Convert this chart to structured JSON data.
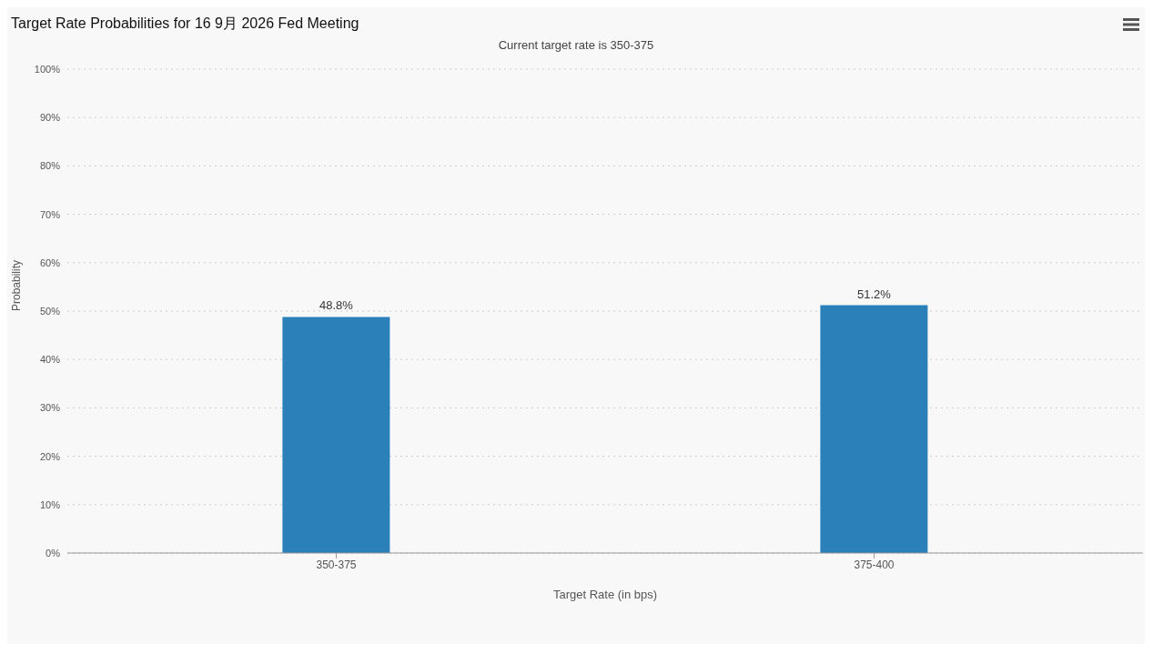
{
  "chart_data": {
    "type": "bar",
    "title": "Target Rate Probabilities for 16 9月 2026 Fed Meeting",
    "subtitle": "Current target rate is 350-375",
    "xlabel": "Target Rate (in bps)",
    "ylabel": "Probability",
    "categories": [
      "350-375",
      "375-400"
    ],
    "values": [
      48.8,
      51.2
    ],
    "color": "#2b80b9",
    "value_labels": [
      "48.8%",
      "51.2%"
    ],
    "ylim": [
      0,
      100
    ],
    "yticks": [
      {
        "value": 0,
        "label": "0%"
      },
      {
        "value": 10,
        "label": "10%"
      },
      {
        "value": 20,
        "label": "20%"
      },
      {
        "value": 30,
        "label": "30%"
      },
      {
        "value": 40,
        "label": "40%"
      },
      {
        "value": 50,
        "label": "50%"
      },
      {
        "value": 60,
        "label": "60%"
      },
      {
        "value": 70,
        "label": "70%"
      },
      {
        "value": 80,
        "label": "80%"
      },
      {
        "value": 90,
        "label": "90%"
      },
      {
        "value": 100,
        "label": "100%"
      }
    ],
    "grid": "y"
  }
}
